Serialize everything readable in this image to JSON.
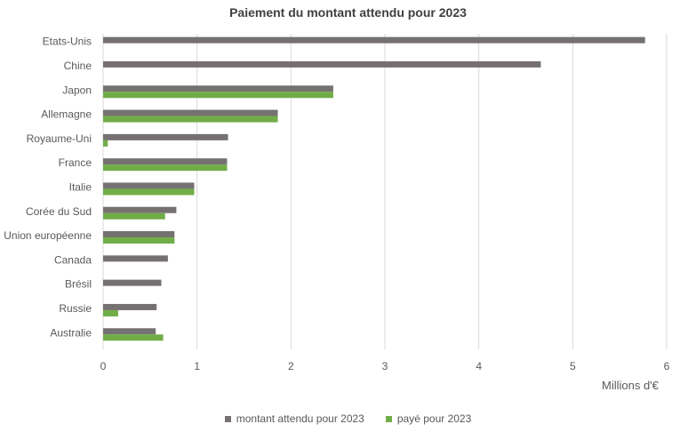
{
  "chart_data": {
    "type": "bar",
    "orientation": "horizontal",
    "title": "Paiement du montant attendu pour 2023",
    "xlabel": "Millions d'€",
    "ylabel": "",
    "xlim": [
      0,
      6
    ],
    "xticks": [
      "0",
      "1",
      "2",
      "3",
      "4",
      "5",
      "6"
    ],
    "grid": "vertical",
    "legend_position": "bottom",
    "categories": [
      "Etats-Unis",
      "Chine",
      "Japon",
      "Allemagne",
      "Royaume-Uni",
      "France",
      "Italie",
      "Corée du Sud",
      "Union européenne",
      "Canada",
      "Brésil",
      "Russie",
      "Australie"
    ],
    "series": [
      {
        "name": "montant attendu pour 2023",
        "color": "#767171",
        "values": [
          5.77,
          4.66,
          2.45,
          1.86,
          1.33,
          1.32,
          0.97,
          0.78,
          0.76,
          0.69,
          0.62,
          0.57,
          0.56
        ]
      },
      {
        "name": "payé pour 2023",
        "color": "#70ad47",
        "values": [
          0,
          0,
          2.45,
          1.86,
          0.05,
          1.32,
          0.97,
          0.66,
          0.76,
          0,
          0,
          0.16,
          0.64
        ]
      }
    ]
  }
}
